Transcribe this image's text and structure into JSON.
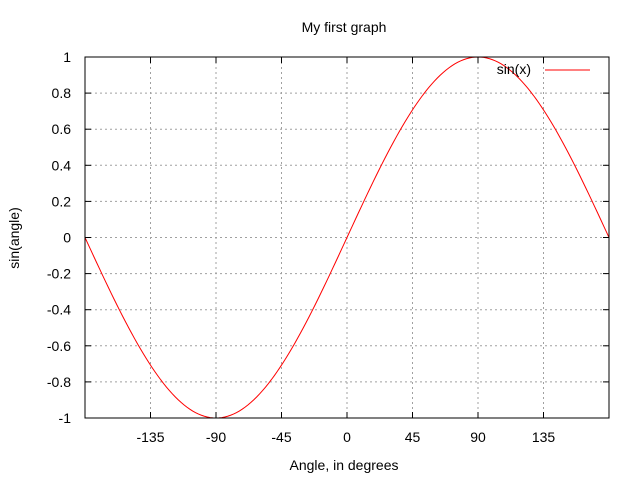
{
  "chart_data": {
    "type": "line",
    "title": "My first graph",
    "xlabel": "Angle, in degrees",
    "ylabel": "sin(angle)",
    "xlim": [
      -180,
      180
    ],
    "ylim": [
      -1,
      1
    ],
    "x_ticks": [
      -135,
      -90,
      -45,
      0,
      45,
      90,
      135
    ],
    "y_ticks": [
      -1,
      -0.8,
      -0.6,
      -0.4,
      -0.2,
      0,
      0.2,
      0.4,
      0.6,
      0.8,
      1
    ],
    "grid": true,
    "legend": "top-right",
    "series": [
      {
        "name": "sin(x)",
        "color": "#ff0000",
        "function": "sin",
        "x": [
          -180,
          -165,
          -150,
          -135,
          -120,
          -105,
          -90,
          -75,
          -60,
          -45,
          -30,
          -15,
          0,
          15,
          30,
          45,
          60,
          75,
          90,
          105,
          120,
          135,
          150,
          165,
          180
        ],
        "y": [
          0,
          -0.259,
          -0.5,
          -0.707,
          -0.866,
          -0.966,
          -1,
          -0.966,
          -0.866,
          -0.707,
          -0.5,
          -0.259,
          0,
          0.259,
          0.5,
          0.707,
          0.866,
          0.966,
          1,
          0.966,
          0.866,
          0.707,
          0.5,
          0.259,
          0
        ]
      }
    ]
  }
}
